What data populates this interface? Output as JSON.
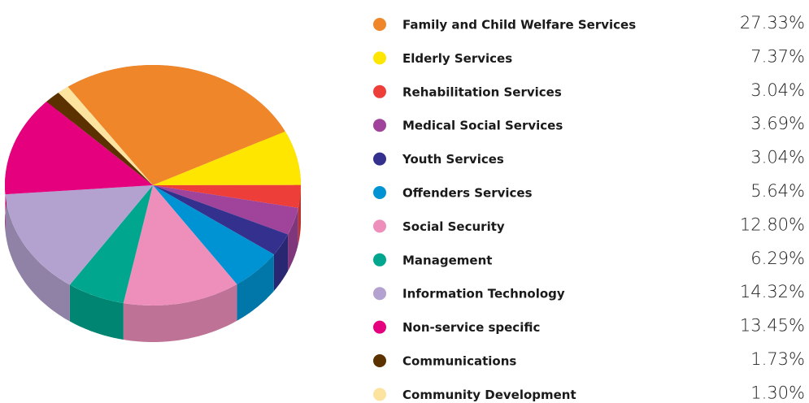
{
  "chart_data": {
    "type": "pie",
    "categories": [
      "Family and Child Welfare Services",
      "Elderly Services",
      "Rehabilitation Services",
      "Medical Social Services",
      "Youth Services",
      "Offenders Services",
      "Social Security",
      "Management",
      "Information Technology",
      "Non-service specific",
      "Communications",
      "Community Development"
    ],
    "values": [
      27.33,
      7.37,
      3.04,
      3.69,
      3.04,
      5.64,
      12.8,
      6.29,
      14.32,
      13.45,
      1.73,
      1.3
    ],
    "value_labels": [
      "27.33%",
      "7.37%",
      "3.04%",
      "3.69%",
      "3.04%",
      "5.64%",
      "12.80%",
      "6.29%",
      "14.32%",
      "13.45%",
      "1.73%",
      "1.30%"
    ],
    "colors": [
      "#f0862a",
      "#ffe600",
      "#ee3e3a",
      "#a0439a",
      "#33308e",
      "#0093d3",
      "#ee8fbb",
      "#00a68e",
      "#b3a2cf",
      "#e5007e",
      "#5c3100",
      "#fde3a0"
    ]
  }
}
